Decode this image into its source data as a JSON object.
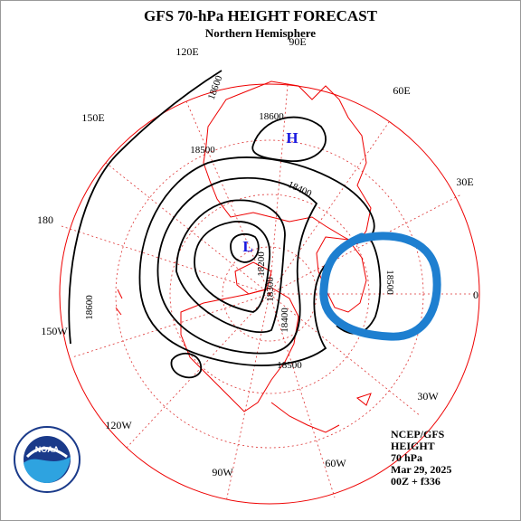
{
  "header": {
    "title": "GFS 70-hPa HEIGHT FORECAST",
    "subtitle": "Northern Hemisphere"
  },
  "longitude_labels": [
    "90E",
    "120E",
    "60E",
    "150E",
    "30E",
    "180",
    "0",
    "150W",
    "30W",
    "120W",
    "60W",
    "90W"
  ],
  "contour_labels": [
    "18600",
    "18600",
    "18500",
    "18400",
    "18200",
    "18300",
    "18400",
    "18500",
    "18500",
    "18600"
  ],
  "pressure_centers": [
    "H",
    "L"
  ],
  "info": [
    "NCEP/GFS",
    "HEIGHT",
    "70 hPa",
    "Mar 29, 2025",
    "00Z + f336"
  ],
  "logo": {
    "text": "NOAA"
  }
}
